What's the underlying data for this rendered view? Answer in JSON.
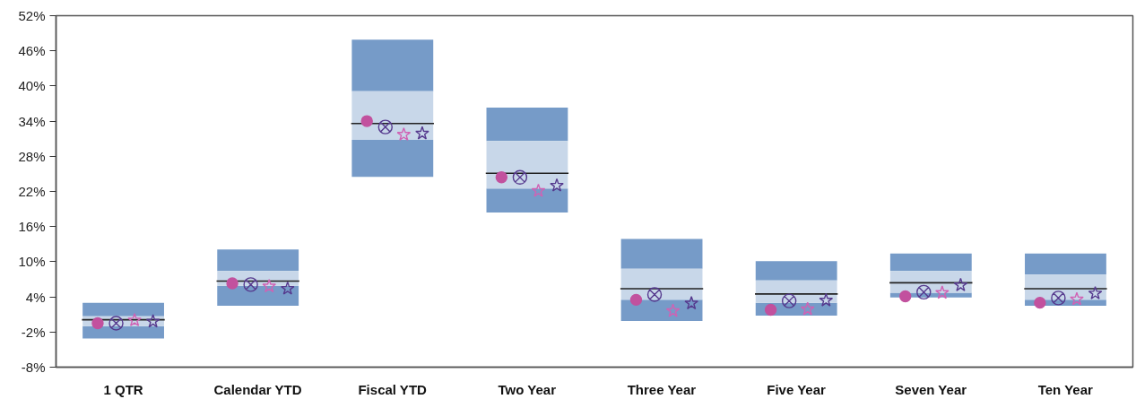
{
  "chart_data": {
    "type": "box",
    "categories": [
      "1 QTR",
      "Calendar YTD",
      "Fiscal YTD",
      "Two Year",
      "Three Year",
      "Five Year",
      "Seven Year",
      "Ten Year"
    ],
    "ylim": [
      -8,
      52
    ],
    "yticks": [
      {
        "value": -8,
        "label": "-8%"
      },
      {
        "value": -2,
        "label": "-2%"
      },
      {
        "value": 4,
        "label": "4%"
      },
      {
        "value": 10,
        "label": "10%"
      },
      {
        "value": 16,
        "label": "16%"
      },
      {
        "value": 22,
        "label": "22%"
      },
      {
        "value": 28,
        "label": "28%"
      },
      {
        "value": 34,
        "label": "34%"
      },
      {
        "value": 40,
        "label": "40%"
      },
      {
        "value": 46,
        "label": "46%"
      },
      {
        "value": 52,
        "label": "52%"
      }
    ],
    "series": [
      {
        "color": "#c8d7e9",
        "boxes": [
          {
            "low": -3.1,
            "q1": -1.0,
            "median": 0.1,
            "q3": 0.7,
            "high": 3.0
          },
          {
            "low": 2.5,
            "q1": 5.9,
            "median": 6.7,
            "q3": 8.4,
            "high": 12.1
          },
          {
            "low": 24.5,
            "q1": 30.8,
            "median": 33.6,
            "q3": 39.1,
            "high": 47.9
          },
          {
            "low": 18.4,
            "q1": 22.5,
            "median": 25.1,
            "q3": 30.6,
            "high": 36.3
          },
          {
            "low": -0.1,
            "q1": 3.5,
            "median": 5.4,
            "q3": 8.8,
            "high": 13.9
          },
          {
            "low": 0.8,
            "q1": 3.0,
            "median": 4.5,
            "q3": 6.8,
            "high": 10.1
          },
          {
            "low": 3.9,
            "q1": 4.7,
            "median": 6.4,
            "q3": 8.4,
            "high": 11.4
          },
          {
            "low": 2.5,
            "q1": 3.5,
            "median": 5.4,
            "q3": 7.8,
            "high": 11.4
          }
        ]
      },
      {
        "type": "scatter",
        "color": "#c2519e",
        "marker": "circle",
        "x": [
          "1 QTR",
          "Calendar YTD",
          "Fiscal YTD",
          "Two Year",
          "Three Year",
          "Five Year",
          "Seven Year",
          "Ten Year"
        ],
        "values": [
          -0.5,
          6.3,
          34.0,
          24.4,
          3.5,
          1.8,
          4.1,
          3.0
        ]
      },
      {
        "type": "scatter",
        "color": "#563a8e",
        "marker": "cross",
        "x": [
          "1 QTR",
          "Calendar YTD",
          "Fiscal YTD",
          "Two Year",
          "Three Year",
          "Five Year",
          "Seven Year",
          "Ten Year"
        ],
        "values": [
          -0.5,
          6.1,
          33.0,
          24.4,
          4.4,
          3.3,
          4.8,
          3.8
        ]
      },
      {
        "type": "scatter",
        "color": "#d062b4",
        "marker": "star",
        "x": [
          "1 QTR",
          "Calendar YTD",
          "Fiscal YTD",
          "Two Year",
          "Three Year",
          "Five Year",
          "Seven Year",
          "Ten Year"
        ],
        "values": [
          0.0,
          5.8,
          31.7,
          22.1,
          1.6,
          1.9,
          4.7,
          3.6
        ]
      },
      {
        "type": "scatter",
        "color": "#563a8e",
        "marker": "star",
        "x": [
          "1 QTR",
          "Calendar YTD",
          "Fiscal YTD",
          "Two Year",
          "Three Year",
          "Five Year",
          "Seven Year",
          "Ten Year"
        ],
        "values": [
          -0.2,
          5.4,
          31.9,
          23.0,
          2.9,
          3.4,
          6.0,
          4.6
        ]
      }
    ]
  }
}
